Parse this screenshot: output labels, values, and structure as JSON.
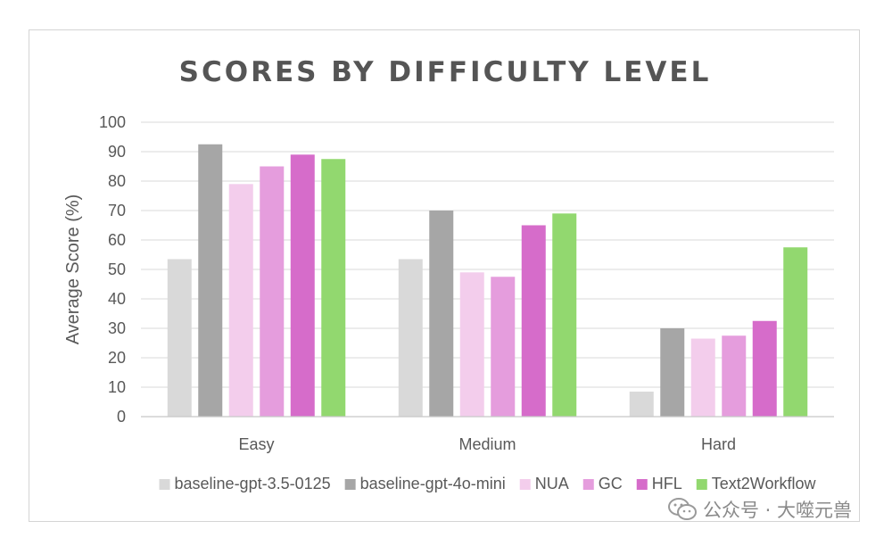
{
  "chart_data": {
    "type": "bar",
    "title": "SCORES BY DIFFICULTY LEVEL",
    "xlabel": "",
    "ylabel": "Average Score (%)",
    "ylim": [
      0,
      100
    ],
    "yticks": [
      0,
      10,
      20,
      30,
      40,
      50,
      60,
      70,
      80,
      90,
      100
    ],
    "grid": true,
    "legend_position": "bottom",
    "categories": [
      "Easy",
      "Medium",
      "Hard"
    ],
    "series": [
      {
        "name": "baseline-gpt-3.5-0125",
        "color": "#d9d9d9",
        "values": [
          53.5,
          53.5,
          8.5
        ]
      },
      {
        "name": "baseline-gpt-4o-mini",
        "color": "#a6a6a6",
        "values": [
          92.5,
          70,
          30
        ]
      },
      {
        "name": "NUA",
        "color": "#f3cdec",
        "values": [
          79,
          49,
          26.5
        ]
      },
      {
        "name": "GC",
        "color": "#e59ddd",
        "values": [
          85,
          47.5,
          27.5
        ]
      },
      {
        "name": "HFL",
        "color": "#d66cca",
        "values": [
          89,
          65,
          32.5
        ]
      },
      {
        "name": "Text2Workflow",
        "color": "#92d86f",
        "values": [
          87.5,
          69,
          57.5
        ]
      }
    ]
  },
  "watermark": {
    "text": "公众号 · 大噬元兽",
    "icon": "wechat-icon"
  }
}
